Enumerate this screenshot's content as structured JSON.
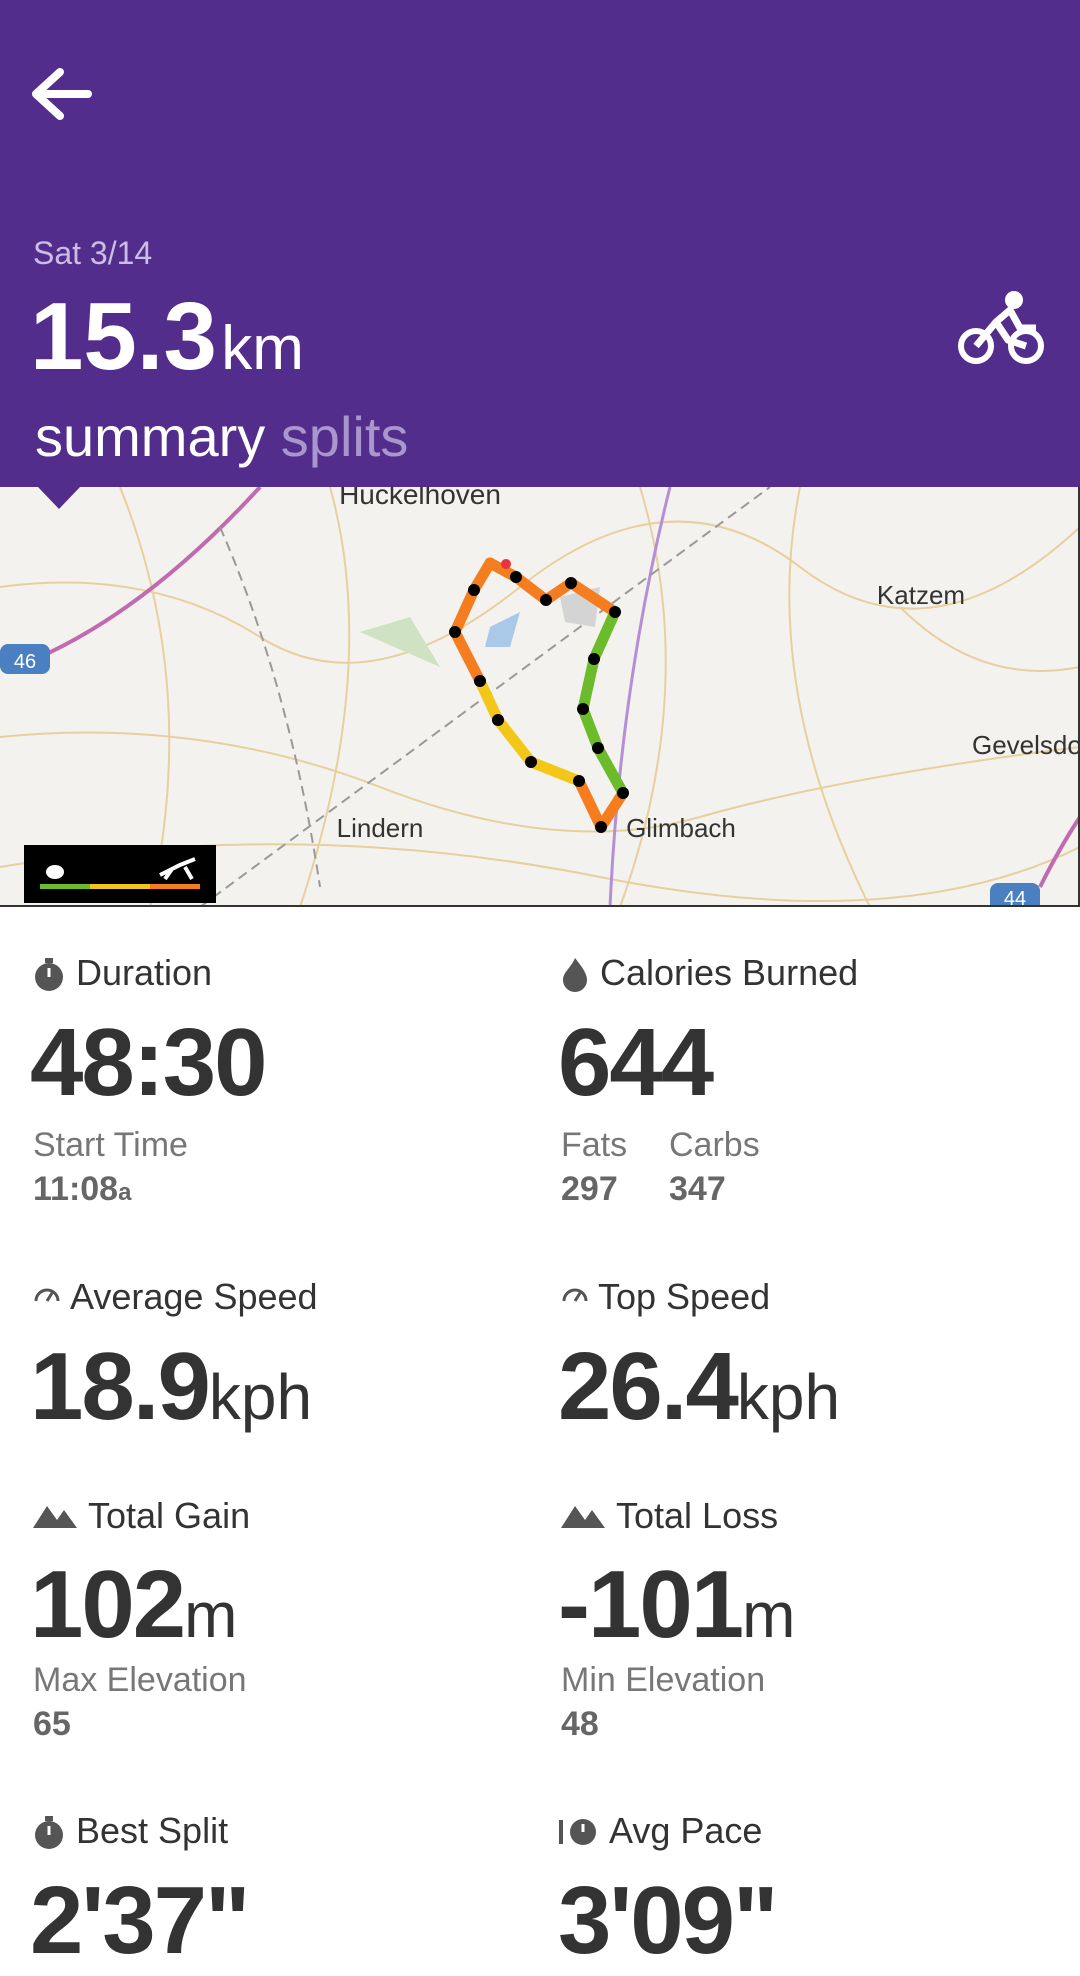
{
  "header": {
    "date": "Sat 3/14",
    "distance": "15.3",
    "unit": "km",
    "tabs": [
      "summary",
      "splits"
    ]
  },
  "map": {
    "labels": [
      "Huckelhoven",
      "Katzem",
      "Gevelsdo",
      "Lindern",
      "Glimbach"
    ],
    "road_signs": [
      "46",
      "44"
    ]
  },
  "stats": [
    {
      "label": "Duration",
      "value": "48:30",
      "sub": [
        {
          "label": "Start Time",
          "value": "11:08",
          "suffix": "a"
        }
      ]
    },
    {
      "label": "Calories Burned",
      "value": "644",
      "sub": [
        {
          "label": "Fats",
          "value": "297"
        },
        {
          "label": "Carbs",
          "value": "347"
        }
      ]
    },
    {
      "label": "Average Speed",
      "value": "18.9",
      "unit": "kph"
    },
    {
      "label": "Top Speed",
      "value": "26.4",
      "unit": "kph"
    },
    {
      "label": "Total Gain",
      "value": "102",
      "unit": "m",
      "sub": [
        {
          "label": "Max Elevation",
          "value": "65"
        }
      ]
    },
    {
      "label": "Total Loss",
      "value": "-101",
      "unit": "m",
      "sub": [
        {
          "label": "Min Elevation",
          "value": "48"
        }
      ]
    },
    {
      "label": "Best Split",
      "value": "2'37\""
    },
    {
      "label": "Avg Pace",
      "value": "3'09\""
    }
  ]
}
